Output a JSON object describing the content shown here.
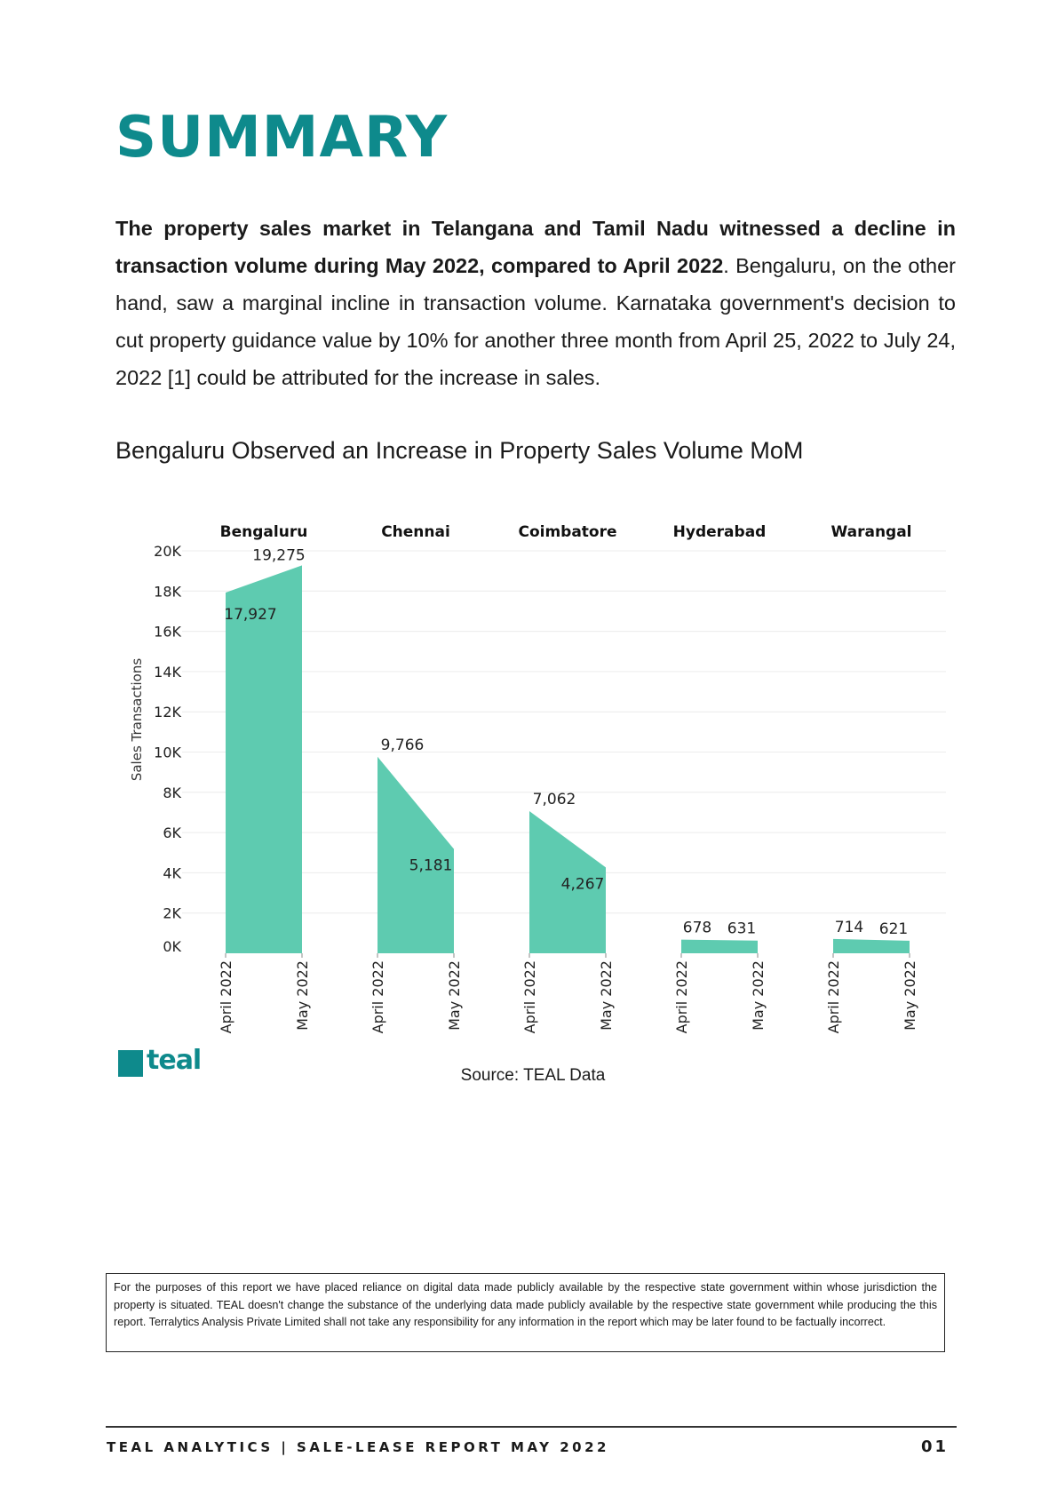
{
  "page": {
    "title": "SUMMARY",
    "intro_bold": "The property sales market in Telangana and Tamil Nadu witnessed a decline in transaction volume during May 2022, compared to April 2022",
    "intro_rest": ". Bengaluru, on the other hand, saw a marginal incline in transaction volume. Karnataka government's decision to cut property guidance value by 10% for another three month from April 25, 2022  to July 24, 2022 [1] could be attributed for the increase in sales.",
    "chart_title": "Bengaluru Observed an Increase in Property Sales Volume MoM",
    "source": "Source: TEAL Data",
    "logo_text": "teal",
    "disclaimer": "For the purposes of this report we have placed reliance on digital data made publicly available by the respective state government within whose jurisdiction the property is situated. TEAL doesn't change the substance of the underlying data made publicly available by the respective state government while producing the this report. Terralytics Analysis Private Limited shall not take any responsibility for any information in the report which may be later found to be factually incorrect.",
    "footer_left": "TEAL ANALYTICS | SALE-LEASE REPORT MAY 2022",
    "footer_right": "01"
  },
  "chart_data": {
    "type": "area",
    "ylabel": "Sales Transactions",
    "ylim": [
      0,
      20000
    ],
    "yticks": [
      "0K",
      "2K",
      "4K",
      "6K",
      "8K",
      "10K",
      "12K",
      "14K",
      "16K",
      "18K",
      "20K"
    ],
    "grid": true,
    "color": "#5ecbb0",
    "x": [
      "April 2022",
      "May 2022"
    ],
    "panels": [
      {
        "name": "Bengaluru",
        "values": [
          17927,
          19275
        ],
        "labels": [
          "17,927",
          "19,275"
        ]
      },
      {
        "name": "Chennai",
        "values": [
          9766,
          5181
        ],
        "labels": [
          "9,766",
          "5,181"
        ]
      },
      {
        "name": "Coimbatore",
        "values": [
          7062,
          4267
        ],
        "labels": [
          "7,062",
          "4,267"
        ]
      },
      {
        "name": "Hyderabad",
        "values": [
          678,
          631
        ],
        "labels": [
          "678",
          "631"
        ]
      },
      {
        "name": "Warangal",
        "values": [
          714,
          621
        ],
        "labels": [
          "714",
          "621"
        ]
      }
    ]
  }
}
